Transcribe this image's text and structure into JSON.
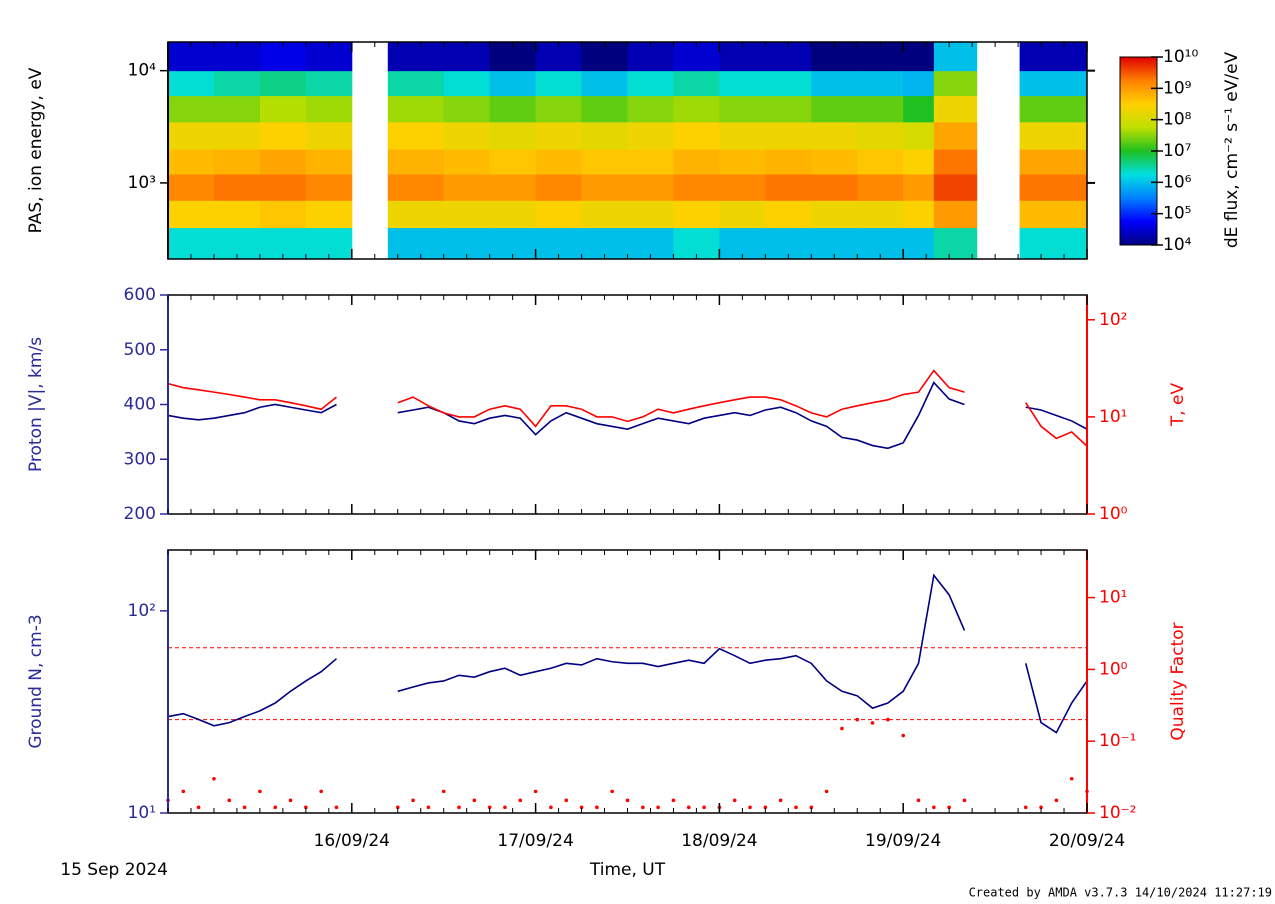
{
  "chart_data": [
    {
      "type": "heatmap",
      "ylabel": "PAS, ion energy, eV",
      "zlabel": "dE flux, cm⁻² s⁻¹ eV/eV",
      "xlim": [
        0,
        120
      ],
      "xticks": [
        24,
        48,
        72,
        96,
        120
      ],
      "x_minor_step": 3,
      "ylog": true,
      "ylim": [
        210,
        18000
      ],
      "yticks": [
        {
          "value": 1000,
          "label": "10³"
        },
        {
          "value": 10000,
          "label": "10⁴"
        }
      ],
      "bins": [
        0,
        6,
        12,
        18,
        24,
        28.7,
        36,
        42,
        48,
        54,
        60,
        66,
        72,
        78,
        84,
        90,
        96,
        100,
        105.6,
        111.2,
        116,
        120
      ],
      "ybins": [
        210,
        400,
        700,
        1200,
        2000,
        3500,
        6000,
        10000,
        18000
      ],
      "zlim": [
        10000,
        10000000000
      ],
      "zticks": [
        {
          "value": 10000,
          "label": "10⁴"
        },
        {
          "value": 100000,
          "label": "10⁵"
        },
        {
          "value": 1000000,
          "label": "10⁶"
        },
        {
          "value": 10000000,
          "label": "10⁷"
        },
        {
          "value": 100000000,
          "label": "10⁸"
        },
        {
          "value": 1000000000,
          "label": "10⁹"
        },
        {
          "value": 10000000000,
          "label": "10¹⁰"
        }
      ],
      "colormap": [
        "#00007f",
        "#0000ff",
        "#0080ff",
        "#00e0e0",
        "#20c020",
        "#c0e000",
        "#ffd000",
        "#ff8000",
        "#e00000"
      ],
      "z": [
        [
          2000000.0,
          300000000.0,
          1500000000.0,
          500000000.0,
          200000000.0,
          30000000.0,
          2000000.0,
          30000.0
        ],
        [
          2000000.0,
          300000000.0,
          2000000000.0,
          600000000.0,
          200000000.0,
          30000000.0,
          3000000.0,
          30000.0
        ],
        [
          2000000.0,
          400000000.0,
          2000000000.0,
          800000000.0,
          300000000.0,
          50000000.0,
          4000000.0,
          40000.0
        ],
        [
          2000000.0,
          300000000.0,
          1500000000.0,
          600000000.0,
          200000000.0,
          40000000.0,
          3000000.0,
          30000.0
        ],
        [
          null,
          null,
          null,
          null,
          null,
          null,
          null,
          null
        ],
        [
          1000000.0,
          200000000.0,
          1500000000.0,
          600000000.0,
          300000000.0,
          40000000.0,
          3000000.0,
          20000.0
        ],
        [
          1000000.0,
          200000000.0,
          1000000000.0,
          500000000.0,
          200000000.0,
          30000000.0,
          2000000.0,
          20000.0
        ],
        [
          1000000.0,
          200000000.0,
          1000000000.0,
          400000000.0,
          150000000.0,
          20000000.0,
          1000000.0,
          10000.0
        ],
        [
          1000000.0,
          300000000.0,
          1500000000.0,
          500000000.0,
          200000000.0,
          30000000.0,
          2000000.0,
          20000.0
        ],
        [
          1000000.0,
          200000000.0,
          1000000000.0,
          400000000.0,
          150000000.0,
          20000000.0,
          1000000.0,
          10000.0
        ],
        [
          1000000.0,
          200000000.0,
          1000000000.0,
          400000000.0,
          200000000.0,
          30000000.0,
          2000000.0,
          20000.0
        ],
        [
          2000000.0,
          300000000.0,
          1500000000.0,
          600000000.0,
          300000000.0,
          40000000.0,
          3000000.0,
          30000.0
        ],
        [
          1000000.0,
          200000000.0,
          1500000000.0,
          500000000.0,
          200000000.0,
          30000000.0,
          2000000.0,
          20000.0
        ],
        [
          1000000.0,
          300000000.0,
          2000000000.0,
          600000000.0,
          200000000.0,
          30000000.0,
          2000000.0,
          20000.0
        ],
        [
          1000000.0,
          200000000.0,
          2000000000.0,
          500000000.0,
          200000000.0,
          20000000.0,
          1000000.0,
          10000.0
        ],
        [
          1000000.0,
          200000000.0,
          1500000000.0,
          400000000.0,
          150000000.0,
          20000000.0,
          1000000.0,
          10000.0
        ],
        [
          1000000.0,
          300000000.0,
          1000000000.0,
          300000000.0,
          100000000.0,
          10000000.0,
          800000.0,
          10000.0
        ],
        [
          3000000.0,
          1000000000.0,
          4000000000.0,
          2000000000.0,
          800000000.0,
          200000000.0,
          30000000.0,
          1000000.0
        ],
        [
          null,
          null,
          null,
          null,
          null,
          null,
          null,
          null
        ],
        [
          2000000.0,
          500000000.0,
          2000000000.0,
          800000000.0,
          200000000.0,
          20000000.0,
          1000000.0,
          20000.0
        ],
        [
          2000000.0,
          500000000.0,
          2000000000.0,
          800000000.0,
          200000000.0,
          20000000.0,
          1000000.0,
          20000.0
        ]
      ]
    },
    {
      "type": "line",
      "ylabel": "Proton |V|, km/s",
      "y2label": "T, eV",
      "y_color": "#2a2a9a",
      "y2_color": "#ff0000",
      "xlim": [
        0,
        120
      ],
      "xticks": [
        24,
        48,
        72,
        96,
        120
      ],
      "x_minor_step": 3,
      "ylim": [
        200,
        600
      ],
      "yticks": [
        200,
        300,
        400,
        500,
        600
      ],
      "y2log": true,
      "y2lim": [
        1,
        180
      ],
      "y2ticks": [
        {
          "value": 1,
          "label": "10⁰"
        },
        {
          "value": 10,
          "label": "10¹"
        },
        {
          "value": 100,
          "label": "10²"
        }
      ],
      "x": [
        0,
        2,
        4,
        6,
        8,
        10,
        12,
        14,
        16,
        18,
        20,
        22,
        24,
        26,
        28,
        30,
        32,
        34,
        36,
        38,
        40,
        42,
        44,
        46,
        48,
        50,
        52,
        54,
        56,
        58,
        60,
        62,
        64,
        66,
        68,
        70,
        72,
        74,
        76,
        78,
        80,
        82,
        84,
        86,
        88,
        90,
        92,
        94,
        96,
        98,
        100,
        102,
        104,
        106,
        108,
        110,
        112,
        114,
        116,
        118,
        120
      ],
      "series": [
        {
          "color": "#000080",
          "values": [
            380,
            375,
            372,
            375,
            380,
            385,
            395,
            400,
            395,
            390,
            385,
            400,
            null,
            null,
            null,
            385,
            390,
            395,
            385,
            370,
            365,
            375,
            380,
            375,
            345,
            370,
            385,
            375,
            365,
            360,
            355,
            365,
            375,
            370,
            365,
            375,
            380,
            385,
            380,
            390,
            395,
            385,
            370,
            360,
            340,
            335,
            325,
            320,
            330,
            380,
            440,
            410,
            400,
            null,
            null,
            null,
            395,
            390,
            380,
            370,
            355
          ]
        },
        {
          "color": "#ff0000",
          "axis": "y2",
          "values": [
            22,
            20,
            19,
            18,
            17,
            16,
            15,
            15,
            14,
            13,
            12,
            16,
            null,
            null,
            null,
            14,
            16,
            13,
            11,
            10,
            10,
            12,
            13,
            12,
            8,
            13,
            13,
            12,
            10,
            10,
            9,
            10,
            12,
            11,
            12,
            13,
            14,
            15,
            16,
            16,
            15,
            13,
            11,
            10,
            12,
            13,
            14,
            15,
            17,
            18,
            30,
            20,
            18,
            null,
            null,
            null,
            14,
            8,
            6,
            7,
            5
          ]
        }
      ]
    },
    {
      "type": "line",
      "ylabel": "Ground N, cm-3",
      "y2label": "Quality Factor",
      "y_color": "#2a2a9a",
      "y2_color": "#ff0000",
      "xlabel": "Time, UT",
      "x_start_label": "15 Sep 2024",
      "xlim": [
        0,
        120
      ],
      "x_minor_step": 3,
      "xticks": [
        {
          "value": 24,
          "label": "16/09/24"
        },
        {
          "value": 48,
          "label": "17/09/24"
        },
        {
          "value": 72,
          "label": "18/09/24"
        },
        {
          "value": 96,
          "label": "19/09/24"
        },
        {
          "value": 120,
          "label": "20/09/24"
        }
      ],
      "ylog": true,
      "ylim": [
        10,
        200
      ],
      "yticks": [
        {
          "value": 10,
          "label": "10¹"
        },
        {
          "value": 100,
          "label": "10²"
        }
      ],
      "y2log": true,
      "y2lim": [
        0.01,
        46
      ],
      "y2ticks": [
        {
          "value": 0.01,
          "label": "10⁻²"
        },
        {
          "value": 0.1,
          "label": "10⁻¹"
        },
        {
          "value": 1,
          "label": "10⁰"
        },
        {
          "value": 10,
          "label": "10¹"
        }
      ],
      "hlines": [
        {
          "value": 2,
          "axis": "y2",
          "color": "#ff0000"
        },
        {
          "value": 0.2,
          "axis": "y2",
          "color": "#ff0000"
        }
      ],
      "x": [
        0,
        2,
        4,
        6,
        8,
        10,
        12,
        14,
        16,
        18,
        20,
        22,
        24,
        26,
        28,
        30,
        32,
        34,
        36,
        38,
        40,
        42,
        44,
        46,
        48,
        50,
        52,
        54,
        56,
        58,
        60,
        62,
        64,
        66,
        68,
        70,
        72,
        74,
        76,
        78,
        80,
        82,
        84,
        86,
        88,
        90,
        92,
        94,
        96,
        98,
        100,
        102,
        104,
        106,
        108,
        110,
        112,
        114,
        116,
        118,
        120
      ],
      "series": [
        {
          "color": "#000080",
          "values": [
            30,
            31,
            29,
            27,
            28,
            30,
            32,
            35,
            40,
            45,
            50,
            58,
            null,
            null,
            null,
            40,
            42,
            44,
            45,
            48,
            47,
            50,
            52,
            48,
            50,
            52,
            55,
            54,
            58,
            56,
            55,
            55,
            53,
            55,
            57,
            55,
            65,
            60,
            55,
            57,
            58,
            60,
            55,
            45,
            40,
            38,
            33,
            35,
            40,
            55,
            150,
            120,
            80,
            null,
            null,
            null,
            55,
            28,
            25,
            35,
            45
          ]
        },
        {
          "color": "#ff0000",
          "axis": "y2",
          "marker": "dots",
          "values": [
            0.015,
            0.02,
            0.012,
            0.03,
            0.015,
            0.012,
            0.02,
            0.012,
            0.015,
            0.012,
            0.02,
            0.012,
            null,
            null,
            null,
            0.012,
            0.015,
            0.012,
            0.02,
            0.012,
            0.015,
            0.012,
            0.012,
            0.015,
            0.02,
            0.012,
            0.015,
            0.012,
            0.012,
            0.02,
            0.015,
            0.012,
            0.012,
            0.015,
            0.012,
            0.012,
            0.012,
            0.015,
            0.012,
            0.012,
            0.015,
            0.012,
            0.012,
            0.02,
            0.15,
            0.2,
            0.18,
            0.2,
            0.12,
            0.015,
            0.012,
            0.012,
            0.015,
            null,
            null,
            null,
            0.012,
            0.012,
            0.015,
            0.03,
            0.02
          ]
        }
      ]
    }
  ],
  "footer": "Created by AMDA v3.7.3 14/10/2024 11:27:19"
}
